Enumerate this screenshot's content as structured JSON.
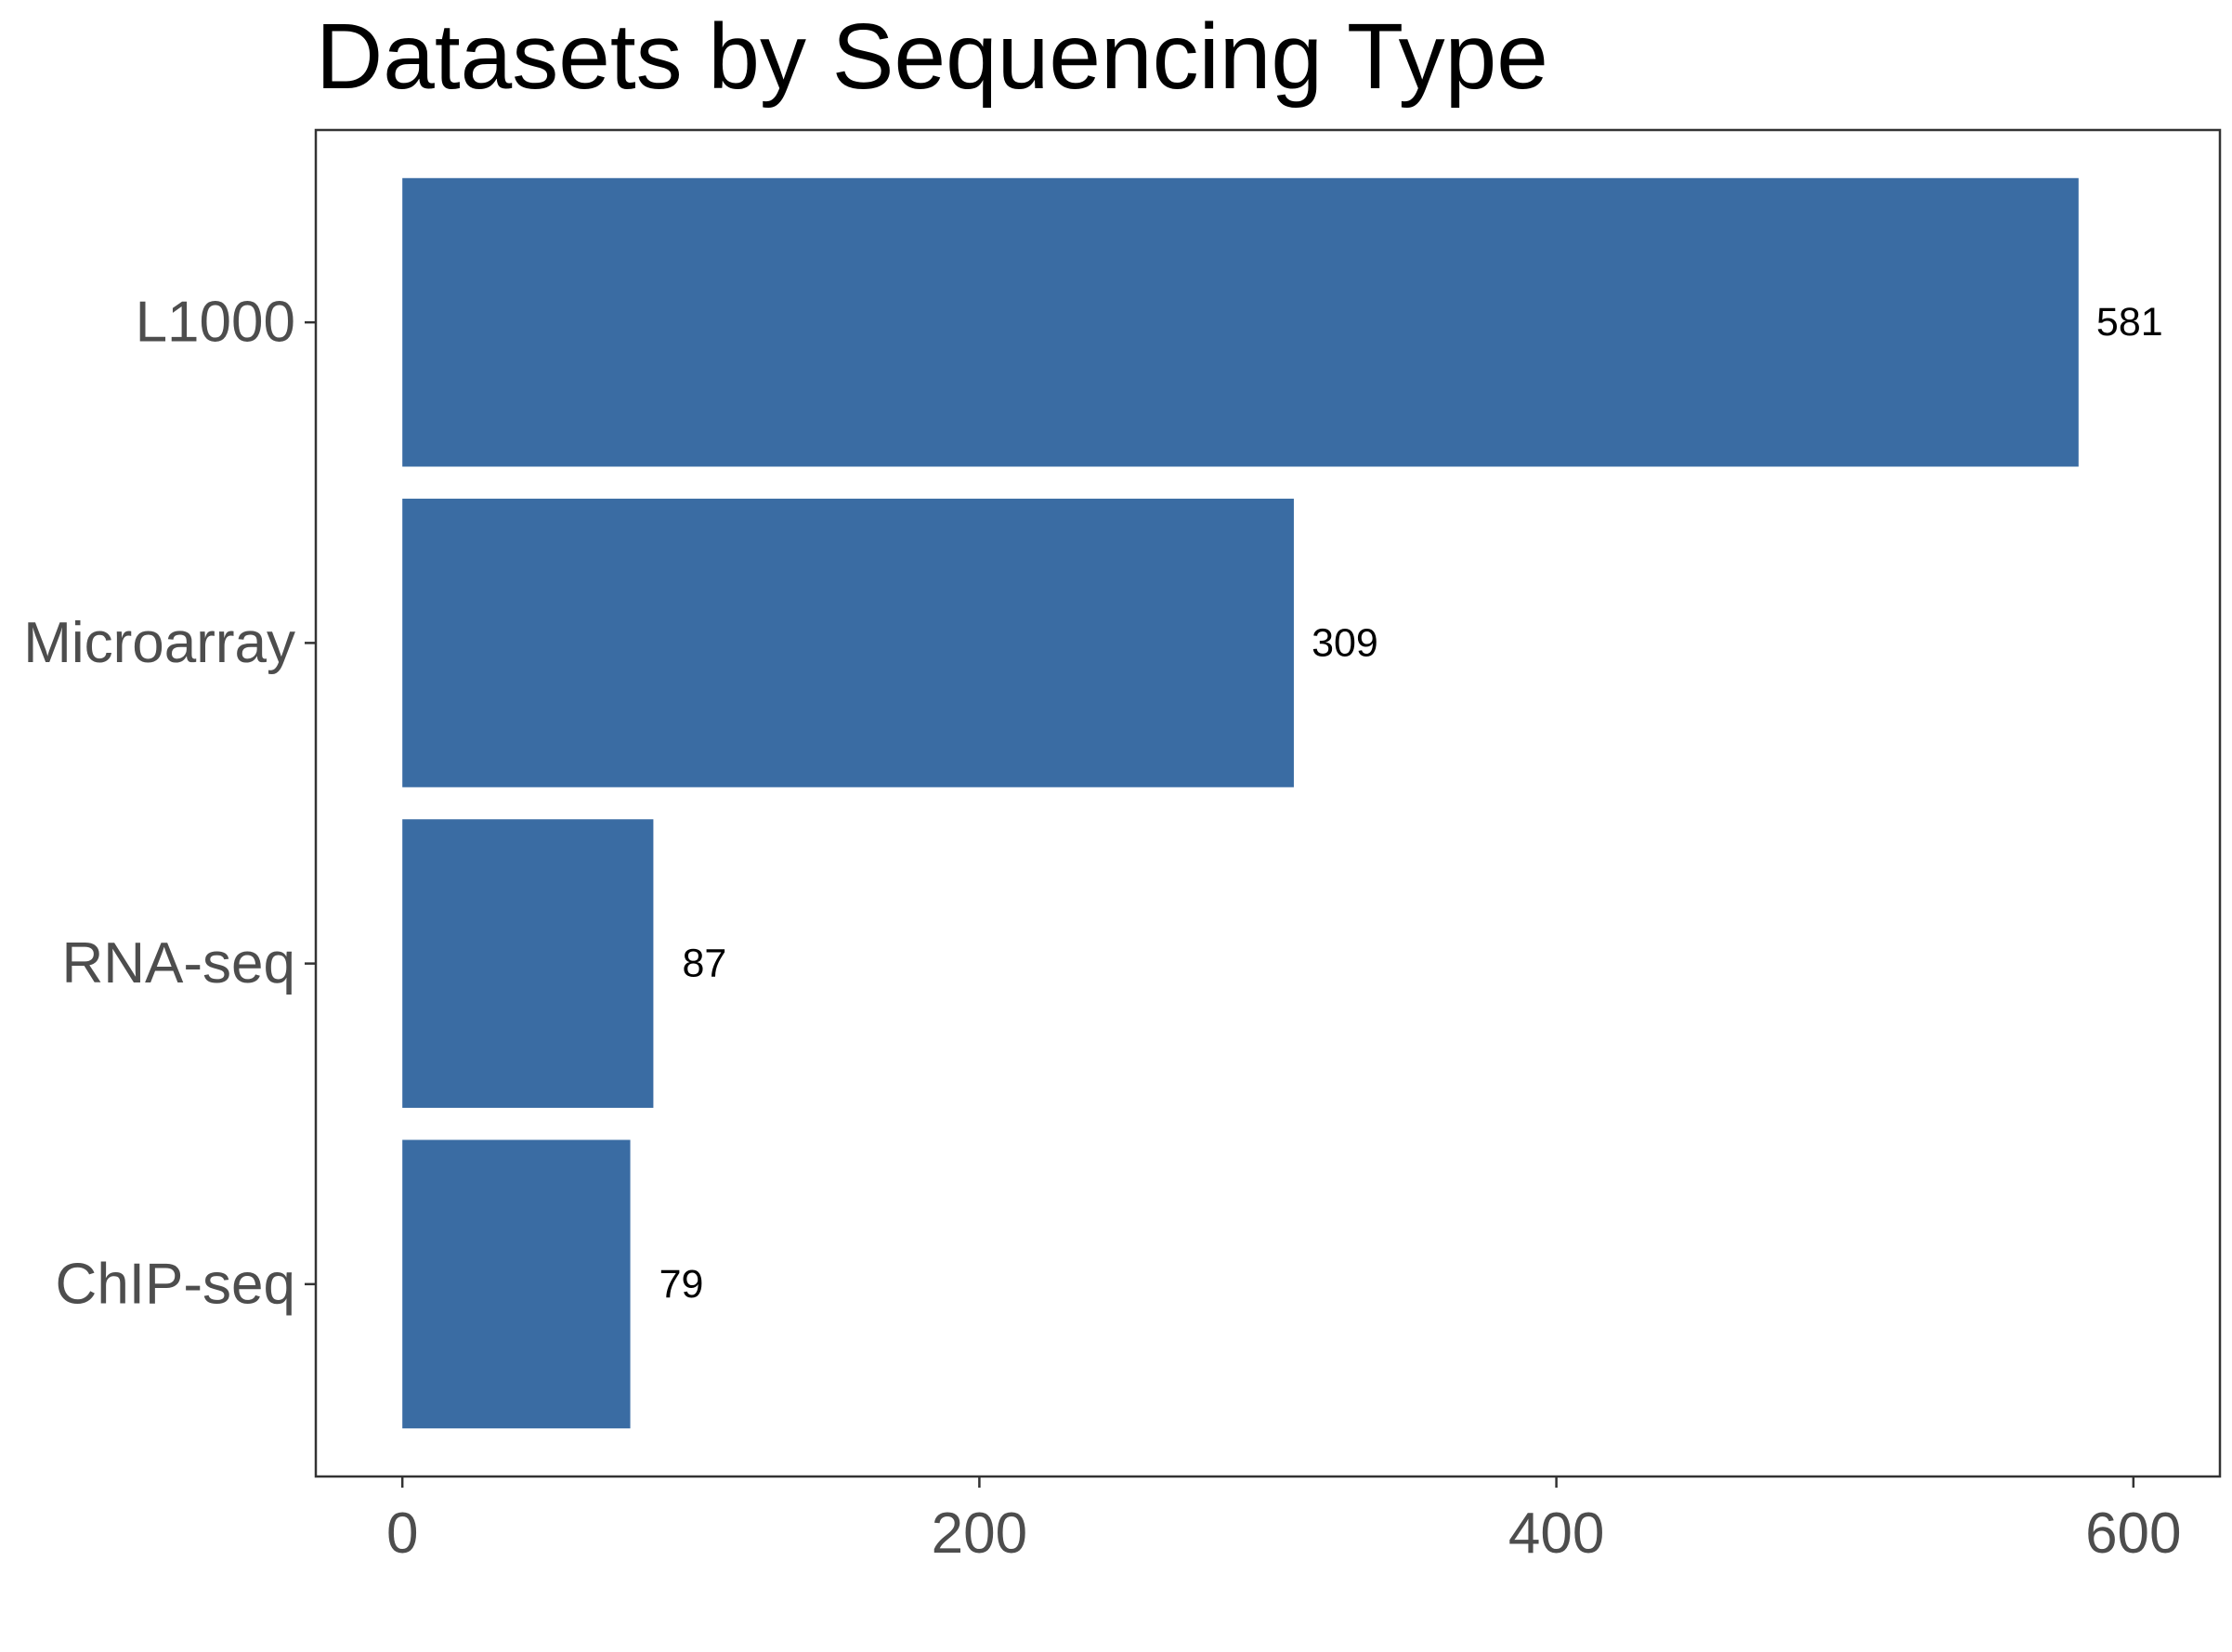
{
  "chart_data": {
    "type": "bar",
    "orientation": "horizontal",
    "title": "Datasets by Sequencing Type",
    "xlabel": "",
    "ylabel": "",
    "categories": [
      "L1000",
      "Microarray",
      "RNA-seq",
      "ChIP-seq"
    ],
    "values": [
      581,
      309,
      87,
      79
    ],
    "data_labels": [
      "581",
      "309",
      "87",
      "79"
    ],
    "x_ticks": [
      0,
      200,
      400,
      600
    ],
    "x_tick_labels": [
      "0",
      "200",
      "400",
      "600"
    ],
    "xlim": [
      -30,
      630
    ],
    "grid": false,
    "legend": "none",
    "colors": {
      "bar": "#3a6ca3",
      "axis": "#333333",
      "tick_text": "#4d4d4d",
      "title": "#000000"
    }
  }
}
